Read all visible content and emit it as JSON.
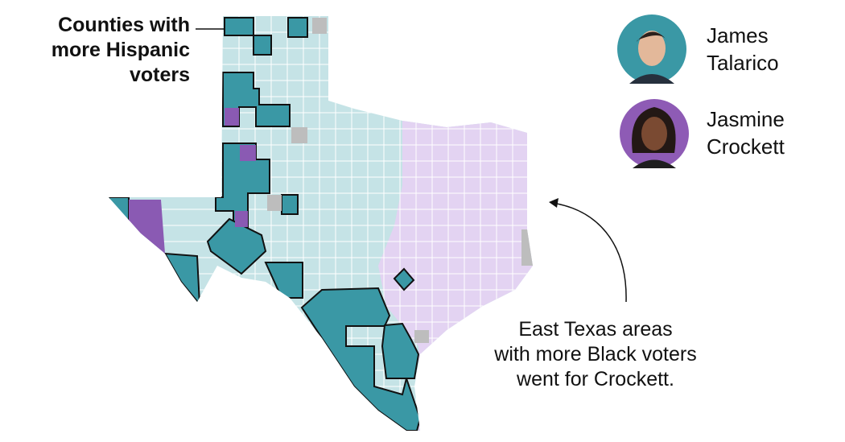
{
  "annotations": {
    "hispanic": [
      "Counties with",
      "more Hispanic",
      "voters"
    ],
    "east_texas": [
      "East Texas areas",
      "with more Black voters",
      "went for Crockett."
    ]
  },
  "candidates": [
    {
      "name": "James Talarico",
      "color": "#3a98a5"
    },
    {
      "name": "Jasmine Crockett",
      "color": "#8e5bb5"
    }
  ]
}
